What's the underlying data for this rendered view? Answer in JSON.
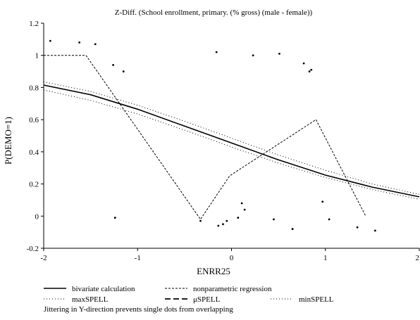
{
  "chart_data": {
    "type": "line",
    "title": "Z-Diff. (School enrollment, primary. (% gross) (male - female))",
    "xlabel": "ENRR25",
    "ylabel": "P(DEMO=1)",
    "xlim": [
      -2,
      2
    ],
    "ylim": [
      -0.2,
      1.2
    ],
    "xticks": [
      -2,
      -1,
      0,
      1,
      2
    ],
    "xtick_labels": [
      "-2",
      "-1",
      "0",
      "1",
      "2"
    ],
    "yticks": [
      -0.2,
      0,
      0.2,
      0.4,
      0.6,
      0.8,
      1,
      1.2
    ],
    "ytick_labels": [
      "-0.2",
      "0",
      "0.2",
      "0.4",
      "0.6",
      "0.8",
      "1",
      "1.2"
    ],
    "grid": false,
    "legend_position": "bottom",
    "series": [
      {
        "name": "bivariate calculation",
        "style": "solid",
        "x": [
          -2,
          -1.5,
          -1,
          -0.5,
          0,
          0.5,
          1,
          1.5,
          2
        ],
        "y": [
          0.815,
          0.755,
          0.665,
          0.56,
          0.455,
          0.35,
          0.255,
          0.18,
          0.12
        ]
      },
      {
        "name": "nonparametric regression",
        "style": "dashed",
        "x": [
          -2,
          -1.55,
          -0.33,
          -0.02,
          0.9,
          1.43
        ],
        "y": [
          1.0,
          1.0,
          -0.02,
          0.25,
          0.6,
          0.0
        ]
      },
      {
        "name": "maxSPELL",
        "style": "dotted",
        "x": [
          -2,
          -1.5,
          -1,
          -0.5,
          0,
          0.5,
          1,
          1.5,
          2
        ],
        "y": [
          0.835,
          0.775,
          0.69,
          0.59,
          0.485,
          0.38,
          0.285,
          0.2,
          0.135
        ]
      },
      {
        "name": "μSPELL",
        "style": "long-dash",
        "x": [],
        "y": []
      },
      {
        "name": "minSPELL",
        "style": "dotted",
        "x": [
          -2,
          -1.5,
          -1,
          -0.5,
          0,
          0.5,
          1,
          1.5,
          2
        ],
        "y": [
          0.785,
          0.72,
          0.635,
          0.535,
          0.43,
          0.33,
          0.24,
          0.165,
          0.105
        ]
      }
    ],
    "scatter_points": [
      {
        "x": -1.93,
        "y": 1.09
      },
      {
        "x": -1.62,
        "y": 1.08
      },
      {
        "x": -1.45,
        "y": 1.07
      },
      {
        "x": -1.26,
        "y": 0.94
      },
      {
        "x": -1.15,
        "y": 0.9
      },
      {
        "x": -1.24,
        "y": -0.01
      },
      {
        "x": -0.16,
        "y": 1.02
      },
      {
        "x": 0.23,
        "y": 1.0
      },
      {
        "x": 0.51,
        "y": 1.01
      },
      {
        "x": 0.77,
        "y": 0.95
      },
      {
        "x": 0.83,
        "y": 0.9
      },
      {
        "x": 0.85,
        "y": 0.91
      },
      {
        "x": -0.33,
        "y": -0.03
      },
      {
        "x": -0.14,
        "y": -0.06
      },
      {
        "x": -0.09,
        "y": -0.05
      },
      {
        "x": -0.05,
        "y": -0.03
      },
      {
        "x": 0.07,
        "y": -0.01
      },
      {
        "x": 0.11,
        "y": 0.08
      },
      {
        "x": 0.14,
        "y": 0.04
      },
      {
        "x": 0.45,
        "y": -0.02
      },
      {
        "x": 0.65,
        "y": -0.08
      },
      {
        "x": 0.97,
        "y": 0.09
      },
      {
        "x": 1.04,
        "y": -0.02
      },
      {
        "x": 1.34,
        "y": -0.07
      },
      {
        "x": 1.53,
        "y": -0.09
      }
    ],
    "legend": [
      "bivariate calculation",
      "nonparametric regression",
      "maxSPELL",
      "μSPELL",
      "minSPELL"
    ],
    "note": "Jittering in Y-direction prevents single dots from overlapping"
  }
}
